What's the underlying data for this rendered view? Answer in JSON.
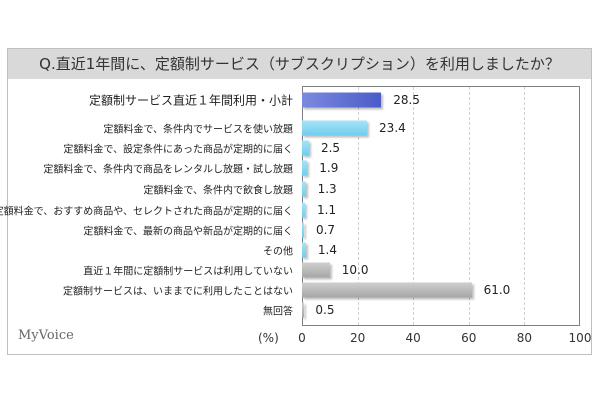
{
  "brand": "MyVoice",
  "chart_data": {
    "type": "bar",
    "title": "Q.直近1年間に、定額制サービス（サブスクリプション）を利用しましたか？",
    "unit_label": "(%)",
    "xlim": [
      0,
      100
    ],
    "ticks": [
      "0",
      "20",
      "40",
      "60",
      "80",
      "100"
    ],
    "grid": true,
    "categories": [
      "定額制サービス直近１年間利用・小計",
      "定額料金で、条件内でサービスを使い放題",
      "定額料金で、設定条件にあった商品が定期的に届く",
      "定額料金で、条件内で商品をレンタルし放題・試し放題",
      "定額料金で、条件内で飲食し放題",
      "定額料金で、おすすめ商品や、セレクトされた商品が定期的に届く",
      "定額料金で、最新の商品や新品が定期的に届く",
      "その他",
      "直近１年間に定額制サービスは利用していない",
      "定額制サービスは、いままでに利用したことはない",
      "無回答"
    ],
    "values": [
      28.5,
      23.4,
      2.5,
      1.9,
      1.3,
      1.1,
      0.7,
      1.4,
      10.0,
      61.0,
      0.5
    ],
    "labels": [
      "28.5",
      "23.4",
      "2.5",
      "1.9",
      "1.3",
      "1.1",
      "0.7",
      "1.4",
      "10.0",
      "61.0",
      "0.5"
    ],
    "colors": {
      "subtotal": "#4a5cc8",
      "item": "#6fcdef",
      "other": "#a6a6a6"
    }
  }
}
